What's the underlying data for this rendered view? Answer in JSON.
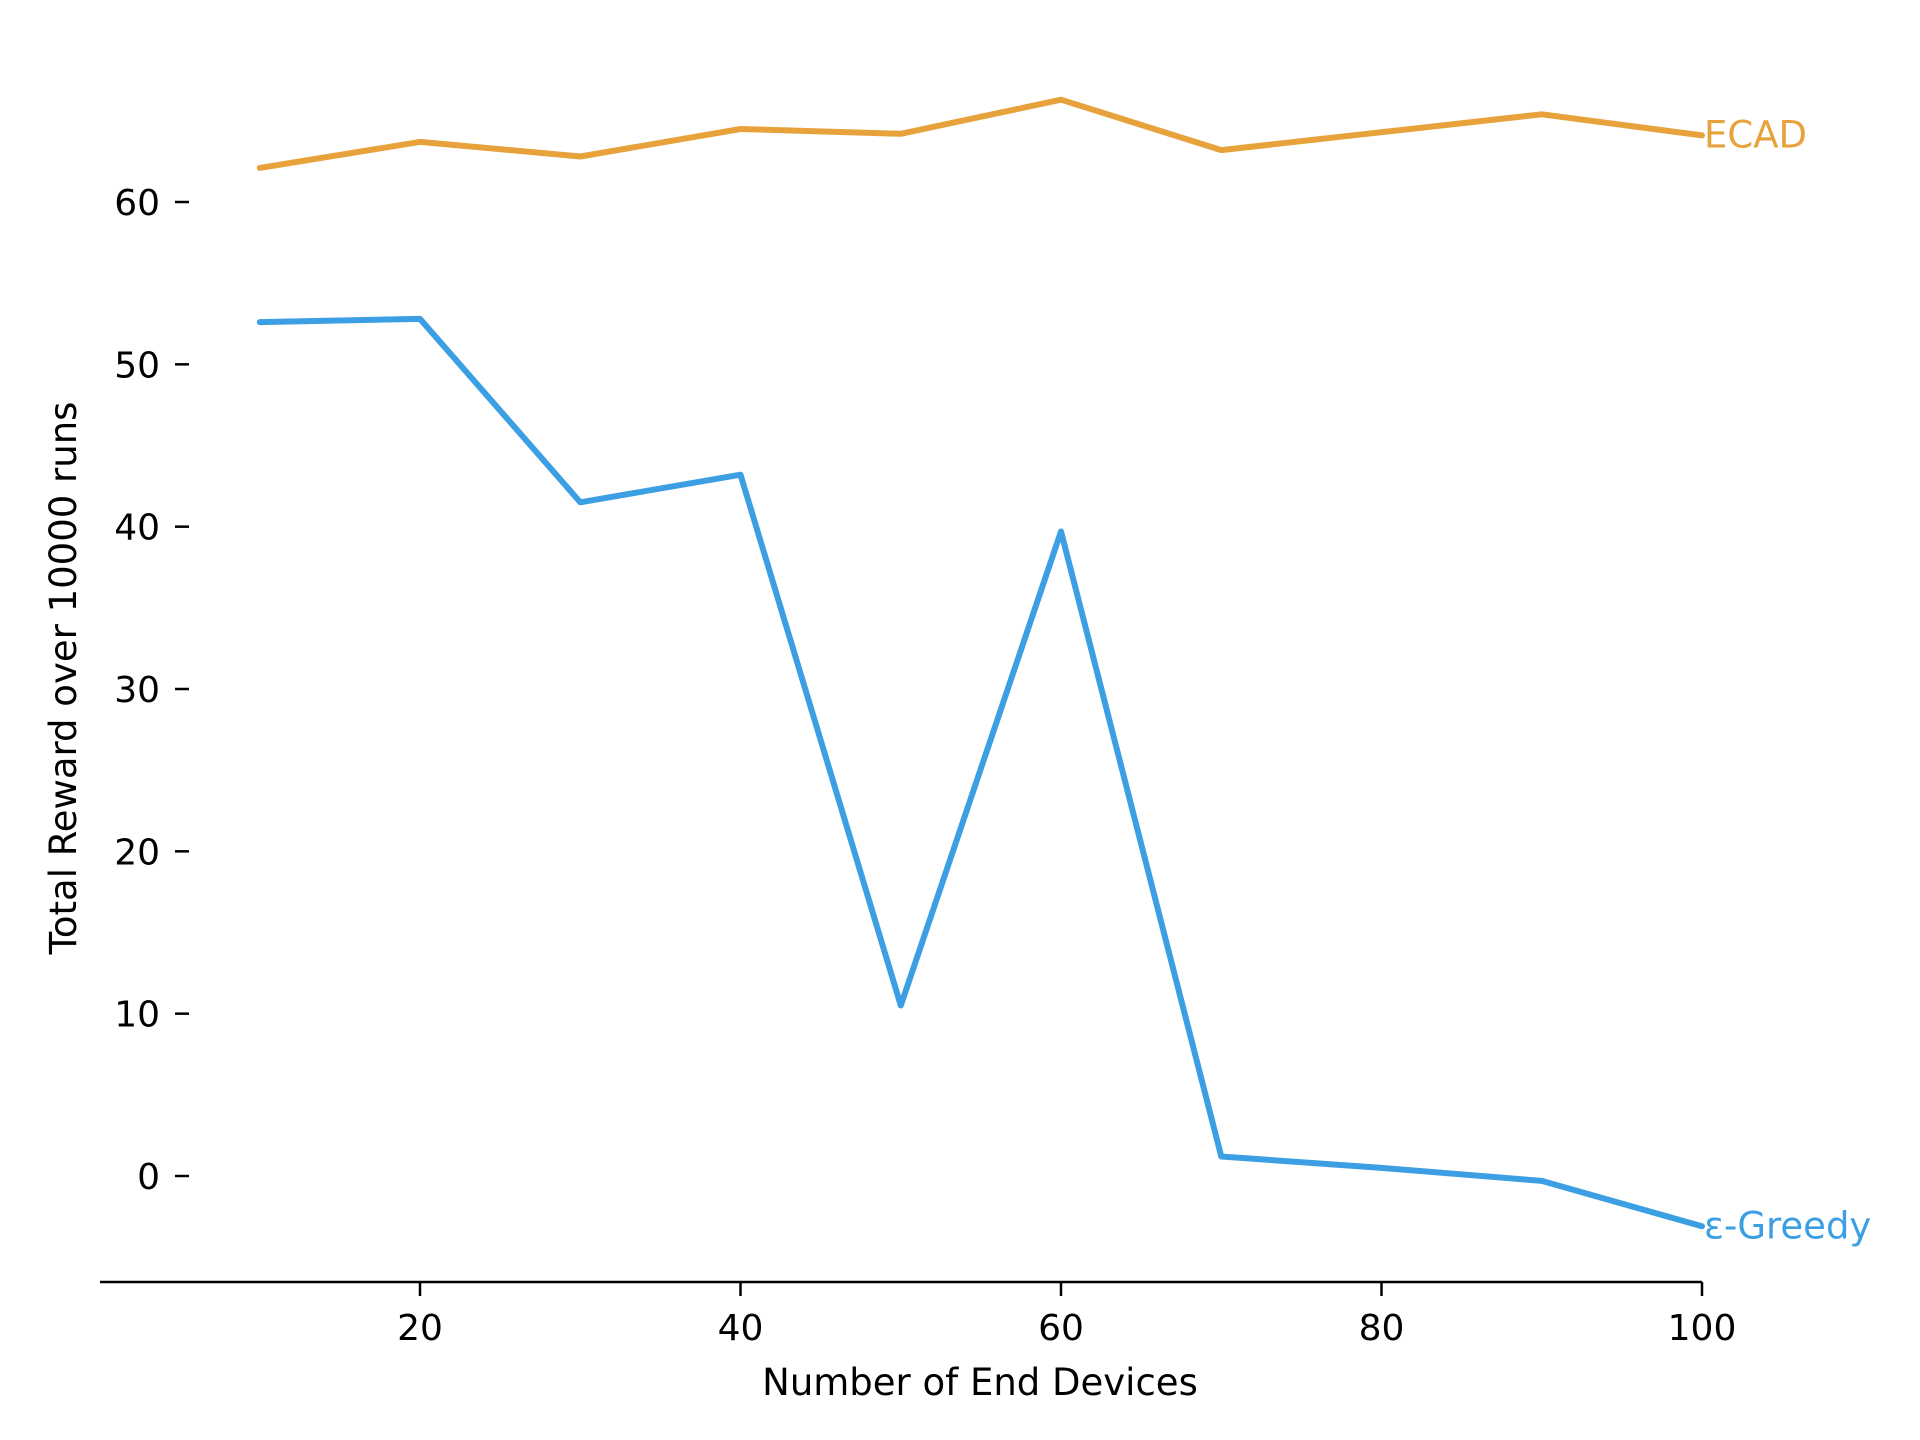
{
  "chart_data": {
    "type": "line",
    "xlabel": "Number of End Devices",
    "ylabel": "Total Reward over 10000 runs",
    "xlim": [
      0,
      100
    ],
    "ylim": [
      -6,
      70
    ],
    "x_ticks": [
      20,
      40,
      60,
      80,
      100
    ],
    "y_ticks": [
      0,
      10,
      20,
      30,
      40,
      50,
      60
    ],
    "grid": false,
    "legend": "inline labels at line ends (right)",
    "x": [
      10,
      20,
      30,
      40,
      50,
      60,
      70,
      80,
      90,
      100
    ],
    "series": [
      {
        "name": "ECAD",
        "color": "#e8a23c",
        "values": [
          62.1,
          63.7,
          62.8,
          64.5,
          64.2,
          66.3,
          63.2,
          64.3,
          65.4,
          64.1
        ]
      },
      {
        "name": "ε-Greedy",
        "color": "#3d9fe3",
        "values": [
          52.6,
          52.8,
          41.5,
          43.2,
          10.5,
          39.7,
          1.2,
          0.5,
          -0.3,
          -3.1
        ]
      }
    ]
  }
}
